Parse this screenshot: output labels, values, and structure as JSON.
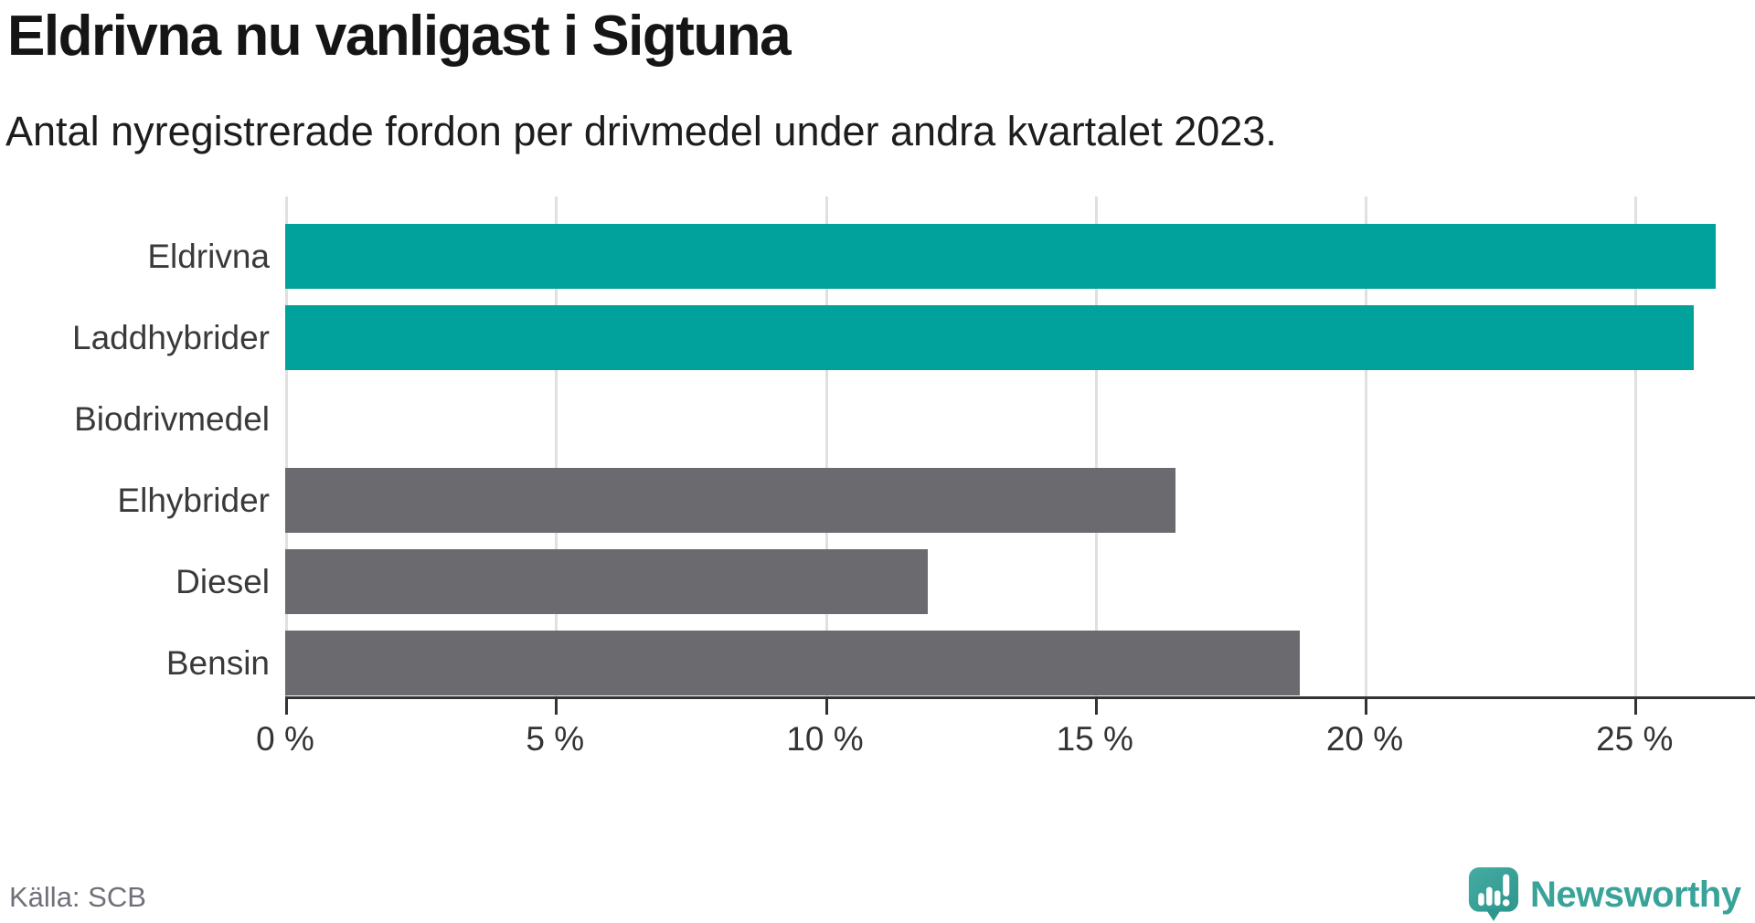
{
  "header": {
    "title": "Eldrivna nu vanligast i Sigtuna",
    "subtitle": "Antal nyregistrerade fordon per drivmedel under andra kvartalet 2023."
  },
  "footer": {
    "source": "Källa: SCB",
    "logo_text": "Newsworthy"
  },
  "colors": {
    "teal": "#00a29b",
    "gray": "#6a6a6f",
    "gridline": "#e0e0e0",
    "axis": "#333333",
    "logo_teal": "#39a39a"
  },
  "chart_data": {
    "type": "bar",
    "orientation": "horizontal",
    "title": "Eldrivna nu vanligast i Sigtuna",
    "subtitle": "Antal nyregistrerade fordon per drivmedel under andra kvartalet 2023.",
    "categories": [
      "Eldrivna",
      "Laddhybrider",
      "Biodrivmedel",
      "Elhybrider",
      "Diesel",
      "Bensin"
    ],
    "values": [
      26.5,
      26.1,
      0,
      16.5,
      11.9,
      18.8
    ],
    "unit": "%",
    "bar_colors": [
      "#00a29b",
      "#00a29b",
      "#00a29b",
      "#6a6a6f",
      "#6a6a6f",
      "#6a6a6f"
    ],
    "x_ticks": [
      0,
      5,
      10,
      15,
      20,
      25
    ],
    "x_tick_labels": [
      "0 %",
      "5 %",
      "10 %",
      "15 %",
      "20 %",
      "25 %"
    ],
    "xlim": [
      0,
      27.2
    ],
    "grid": true,
    "legend": "none",
    "xlabel": "",
    "ylabel": "",
    "source": "Källa: SCB"
  }
}
